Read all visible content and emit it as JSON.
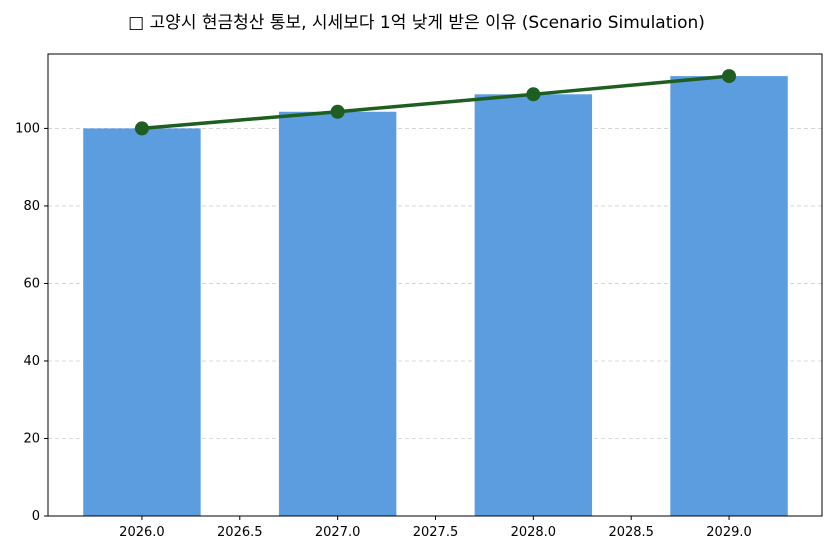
{
  "chart_data": {
    "type": "bar",
    "title": "□ 고양시 현금청산 통보, 시세보다 1억 낮게 받은 이유 (Scenario Simulation)",
    "xlabel": "",
    "ylabel": "",
    "x": [
      2026,
      2027,
      2028,
      2029
    ],
    "series": [
      {
        "type": "bar",
        "values": [
          100,
          104.3,
          108.8,
          113.5
        ],
        "color": "#5b9ddf"
      },
      {
        "type": "line",
        "values": [
          100,
          104.3,
          108.8,
          113.5
        ],
        "color": "#1e5e20",
        "marker": "circle"
      }
    ],
    "xlim": [
      2025.52,
      2029.475
    ],
    "ylim": [
      0,
      119.2
    ],
    "xticks": [
      "2026.0",
      "2026.5",
      "2027.0",
      "2027.5",
      "2028.0",
      "2028.5",
      "2029.0"
    ],
    "yticks": [
      "0",
      "20",
      "40",
      "60",
      "80",
      "100"
    ],
    "grid": "y-dashed",
    "bar_width_years": 0.6
  }
}
